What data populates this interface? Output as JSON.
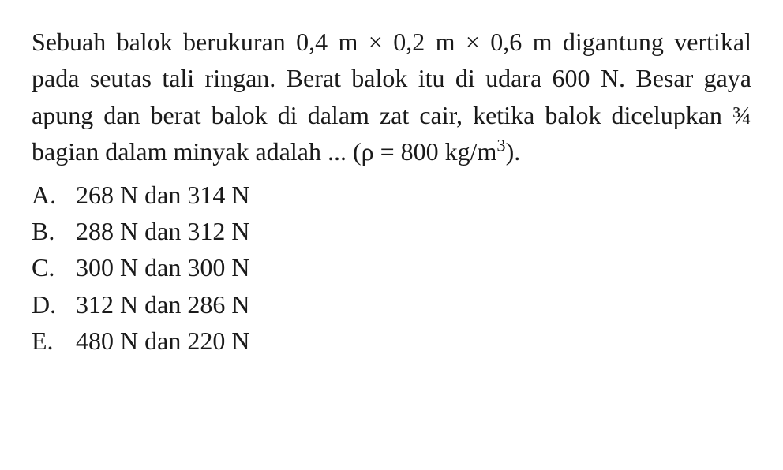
{
  "question": {
    "text_parts": {
      "p1": "Sebuah balok berukuran 0,4 m × 0,2 m × 0,6 m digantung vertikal pada seutas tali ringan. Berat balok itu di udara 600 N. Besar gaya apung dan berat balok di dalam zat cair, ketika balok dicelupkan ¾ bagian dalam minyak adalah ... (ρ = 800 kg/m",
      "sup": "3",
      "p2": ")."
    }
  },
  "options": [
    {
      "label": "A.",
      "text": "268 N dan 314 N"
    },
    {
      "label": "B.",
      "text": "288 N dan 312 N"
    },
    {
      "label": "C.",
      "text": "300 N dan 300 N"
    },
    {
      "label": "D.",
      "text": "312 N dan 286 N"
    },
    {
      "label": "E.",
      "text": "480 N dan 220 N"
    }
  ],
  "styling": {
    "font_family": "Times New Roman",
    "font_size_pt": 24,
    "text_color": "#1a1a1a",
    "background_color": "#ffffff",
    "line_height": 1.45,
    "text_align": "justify"
  }
}
